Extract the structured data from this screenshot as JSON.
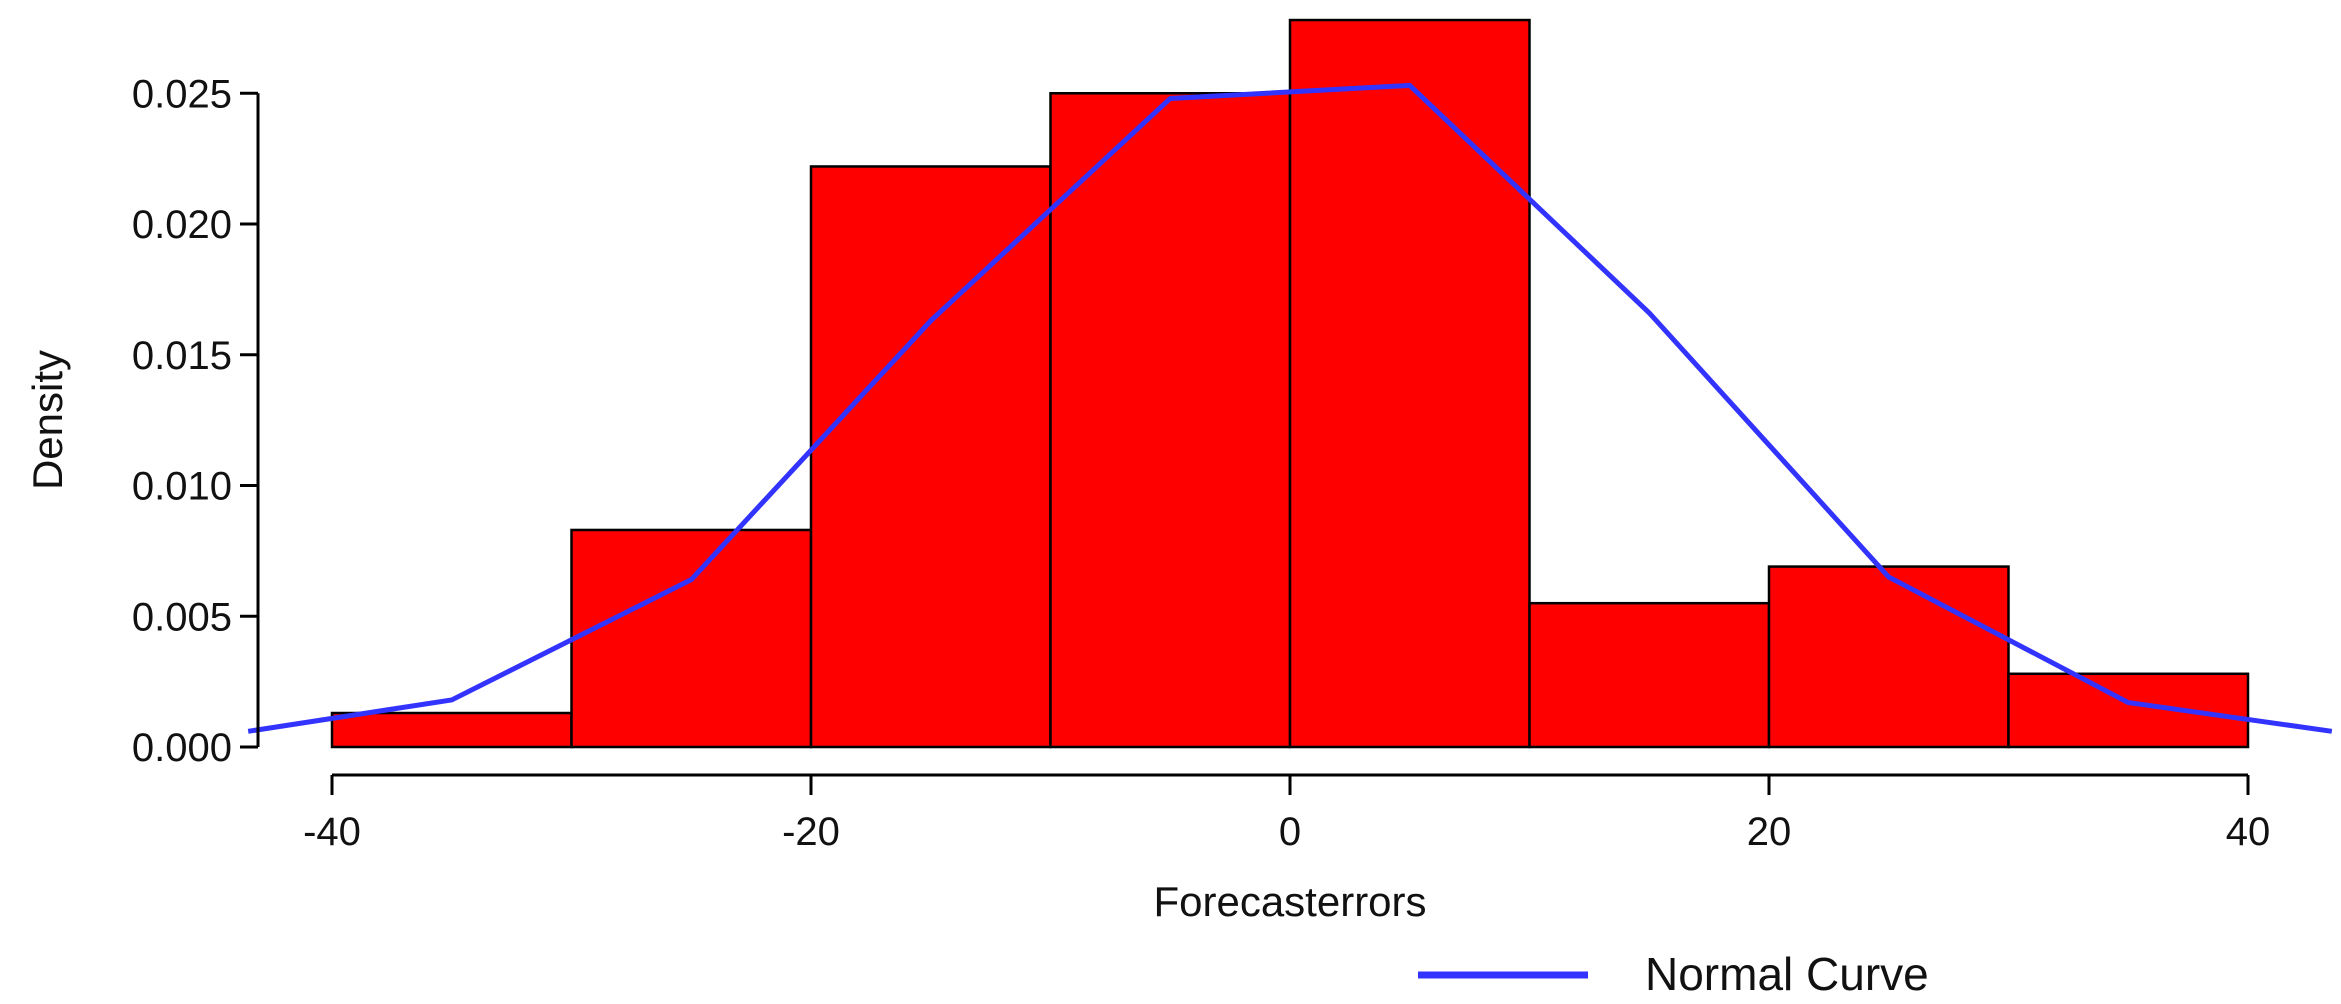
{
  "chart_data": {
    "type": "bar",
    "subtype": "histogram",
    "xlabel": "Forecasterrors",
    "ylabel": "Density",
    "xlim": [
      -43.5,
      43.5
    ],
    "ylim": [
      0,
      0.025
    ],
    "x_ticks": [
      -40,
      -20,
      0,
      20,
      40
    ],
    "x_tick_labels": [
      "-40",
      "-20",
      "0",
      "20",
      "40"
    ],
    "y_ticks": [
      0,
      0.005,
      0.01,
      0.015,
      0.02,
      0.025
    ],
    "y_tick_labels": [
      "0.000",
      "0.005",
      "0.010",
      "0.015",
      "0.020",
      "0.025"
    ],
    "bins": [
      {
        "start": -40,
        "end": -30,
        "density": 0.0013
      },
      {
        "start": -30,
        "end": -20,
        "density": 0.0083
      },
      {
        "start": -20,
        "end": -10,
        "density": 0.0222
      },
      {
        "start": -10,
        "end": 0,
        "density": 0.025
      },
      {
        "start": 0,
        "end": 10,
        "density": 0.0278
      },
      {
        "start": 10,
        "end": 20,
        "density": 0.0055
      },
      {
        "start": 20,
        "end": 30,
        "density": 0.0069
      },
      {
        "start": 30,
        "end": 40,
        "density": 0.0028
      }
    ],
    "bar_color": "#ff0000",
    "bar_edge_color": "#000000",
    "series": [
      {
        "name": "Normal Curve",
        "type": "line",
        "color": "#3333ff",
        "x": [
          -43.5,
          -35,
          -25,
          -15,
          -5,
          5,
          15,
          25,
          35,
          43.5
        ],
        "y": [
          0.0006,
          0.0018,
          0.0064,
          0.0163,
          0.0248,
          0.0253,
          0.0166,
          0.0065,
          0.0017,
          0.0006
        ]
      }
    ],
    "legend": {
      "position": "bottom-right",
      "entries": [
        "Normal Curve"
      ]
    },
    "grid": false
  }
}
